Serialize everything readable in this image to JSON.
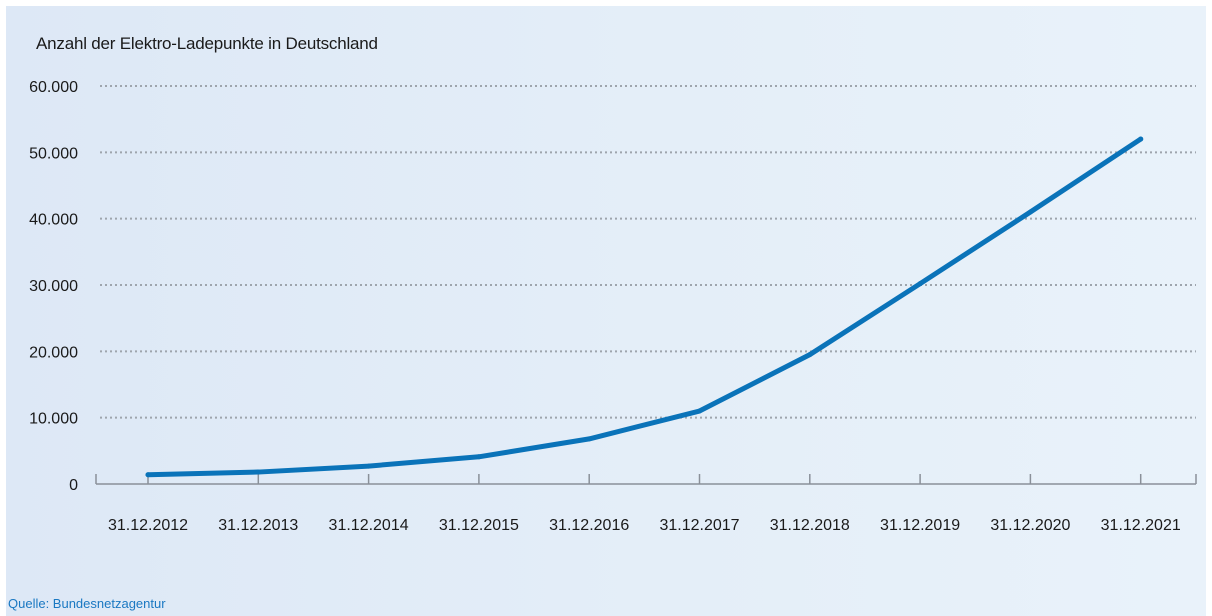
{
  "chart_data": {
    "type": "line",
    "title": "Anzahl der Elektro-Ladepunkte in Deutschland",
    "source": "Quelle: Bundesnetzagentur",
    "categories": [
      "31.12.2012",
      "31.12.2013",
      "31.12.2014",
      "31.12.2015",
      "31.12.2016",
      "31.12.2017",
      "31.12.2018",
      "31.12.2019",
      "31.12.2020",
      "31.12.2021"
    ],
    "series": [
      {
        "values": [
          1400,
          1800,
          2700,
          4100,
          6800,
          11000,
          19500,
          30200,
          41000,
          52000
        ]
      }
    ],
    "y_ticks": [
      "0",
      "10.000",
      "20.000",
      "30.000",
      "40.000",
      "50.000",
      "60.000"
    ],
    "ylim": [
      0,
      60000
    ],
    "grid": "dotted horizontal",
    "colors": {
      "line": "#0a73b9",
      "grid": "#9ea5ad",
      "axis": "#8a9099",
      "text": "#1a1a1a",
      "source": "#1a78c2"
    }
  }
}
